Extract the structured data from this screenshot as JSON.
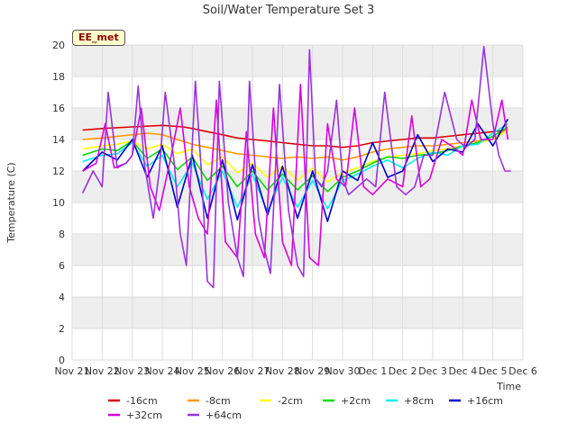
{
  "chart_data": {
    "type": "line",
    "title": "Soil/Water Temperature Set 3",
    "xlabel": "Time",
    "ylabel": "Temperature (C)",
    "ylim": [
      0,
      20
    ],
    "yticks": [
      0,
      2,
      4,
      6,
      8,
      10,
      12,
      14,
      16,
      18,
      20
    ],
    "xlim": [
      0,
      15
    ],
    "xtick_labels": [
      "Nov 21",
      "Nov 22",
      "Nov 23",
      "Nov 24",
      "Nov 25",
      "Nov 26",
      "Nov 27",
      "Nov 28",
      "Nov 29",
      "Nov 30",
      "Dec 1",
      "Dec 2",
      "Dec 3",
      "Dec 4",
      "Dec 5",
      "Dec 6"
    ],
    "grid": true,
    "legend_position": "bottom",
    "badge": "EE_met",
    "series": [
      {
        "name": "-16cm",
        "color": "#dd0000",
        "x": [
          0.35,
          1,
          2,
          3,
          3.7,
          4,
          4.5,
          5,
          5.5,
          6,
          6.5,
          7,
          7.5,
          8,
          8.5,
          9,
          9.5,
          10,
          10.5,
          11,
          11.5,
          12,
          12.5,
          13,
          13.5,
          14,
          14.5
        ],
        "y": [
          14.6,
          14.7,
          14.8,
          14.9,
          14.8,
          14.7,
          14.5,
          14.3,
          14.1,
          14.0,
          13.9,
          13.8,
          13.7,
          13.6,
          13.6,
          13.5,
          13.6,
          13.8,
          13.9,
          14.0,
          14.1,
          14.1,
          14.2,
          14.3,
          14.4,
          14.5,
          14.6
        ]
      },
      {
        "name": "-8cm",
        "color": "#ff9900",
        "x": [
          0.35,
          1,
          1.5,
          2,
          2.5,
          3,
          3.5,
          4,
          4.5,
          5,
          5.5,
          6,
          6.5,
          7,
          7.5,
          8,
          8.5,
          9,
          9.5,
          10,
          10.5,
          11,
          11.5,
          12,
          12.5,
          13,
          13.5,
          14,
          14.5
        ],
        "y": [
          14.0,
          14.1,
          14.2,
          14.3,
          14.4,
          14.3,
          14.0,
          13.7,
          13.5,
          13.3,
          13.1,
          13.0,
          12.9,
          12.8,
          12.9,
          12.8,
          12.9,
          12.7,
          12.9,
          13.2,
          13.4,
          13.5,
          13.6,
          13.6,
          13.7,
          13.8,
          13.9,
          14.0,
          14.7
        ]
      },
      {
        "name": "-2cm",
        "color": "#ffff00",
        "x": [
          0.35,
          1,
          1.5,
          2,
          2.5,
          3,
          3.5,
          4,
          4.5,
          5,
          5.5,
          6,
          6.5,
          7,
          7.5,
          8,
          8.5,
          9,
          9.5,
          10,
          10.5,
          11,
          11.5,
          12,
          12.5,
          13,
          13.5,
          14,
          14.5
        ],
        "y": [
          13.4,
          13.6,
          13.7,
          13.9,
          13.4,
          13.7,
          13.1,
          13.4,
          12.4,
          12.9,
          11.9,
          12.5,
          11.6,
          12.3,
          11.4,
          12.2,
          11.3,
          11.9,
          12.2,
          12.6,
          12.9,
          13.0,
          13.1,
          13.3,
          13.4,
          13.6,
          13.8,
          14.0,
          14.6
        ]
      },
      {
        "name": "+2cm",
        "color": "#00dd00",
        "x": [
          0.35,
          1,
          1.5,
          2,
          2.5,
          3,
          3.5,
          4,
          4.5,
          5,
          5.5,
          6,
          6.5,
          7,
          7.5,
          8,
          8.5,
          9,
          9.5,
          10,
          10.5,
          11,
          11.5,
          12,
          12.5,
          13,
          13.5,
          14,
          14.5
        ],
        "y": [
          13.0,
          13.4,
          13.3,
          13.9,
          12.8,
          13.4,
          12.1,
          12.9,
          11.4,
          12.3,
          11.0,
          12.0,
          10.8,
          11.8,
          10.8,
          11.7,
          10.7,
          11.6,
          12.0,
          12.5,
          12.9,
          12.8,
          13.0,
          13.1,
          13.3,
          13.6,
          13.8,
          14.2,
          14.8
        ]
      },
      {
        "name": "+8cm",
        "color": "#00eeee",
        "x": [
          0.35,
          1,
          1.5,
          2,
          2.5,
          3,
          3.5,
          4,
          4.5,
          5,
          5.5,
          6,
          6.5,
          7,
          7.5,
          8,
          8.5,
          9,
          9.5,
          10,
          10.5,
          11,
          11.5,
          12,
          12.5,
          13,
          13.5,
          14,
          14.5
        ],
        "y": [
          12.6,
          13.0,
          13.1,
          13.8,
          12.3,
          13.0,
          11.0,
          12.5,
          10.2,
          12.0,
          9.7,
          11.8,
          9.4,
          11.6,
          9.7,
          11.4,
          9.6,
          11.4,
          11.8,
          12.3,
          12.7,
          12.2,
          12.8,
          13.2,
          13.0,
          13.6,
          13.7,
          14.4,
          15.0
        ]
      },
      {
        "name": "+16cm",
        "color": "#0000cc",
        "x": [
          0.35,
          1,
          1.5,
          2,
          2.5,
          3,
          3.5,
          4,
          4.5,
          5,
          5.5,
          6,
          6.5,
          7,
          7.5,
          8,
          8.5,
          9,
          9.5,
          10,
          10.5,
          11,
          11.5,
          12,
          12.5,
          13,
          13.5,
          14,
          14.5
        ],
        "y": [
          12.0,
          13.2,
          12.7,
          14.0,
          11.6,
          13.6,
          9.7,
          13.0,
          9.0,
          12.7,
          8.9,
          12.4,
          9.2,
          12.3,
          9.0,
          12.0,
          8.8,
          12.0,
          11.4,
          13.8,
          11.6,
          12.0,
          14.3,
          12.6,
          13.4,
          13.2,
          15.0,
          13.6,
          15.3
        ]
      },
      {
        "name": "+32cm",
        "color": "#dd00dd",
        "x": [
          0.35,
          0.8,
          1.1,
          1.4,
          1.8,
          2.0,
          2.3,
          2.6,
          2.9,
          3.3,
          3.6,
          3.9,
          4.2,
          4.5,
          4.8,
          5.1,
          5.5,
          5.8,
          6.1,
          6.4,
          6.7,
          7.0,
          7.3,
          7.6,
          7.9,
          8.2,
          8.5,
          8.8,
          9.1,
          9.4,
          9.7,
          10.0,
          10.5,
          11.0,
          11.3,
          11.6,
          11.9,
          12.3,
          12.7,
          13.0,
          13.3,
          13.6,
          14.0,
          14.3,
          14.5
        ],
        "y": [
          12.0,
          12.5,
          15.0,
          12.2,
          12.5,
          13.0,
          16.0,
          11.0,
          9.5,
          13.0,
          16.0,
          11.0,
          9.0,
          8.0,
          16.5,
          7.5,
          6.5,
          14.5,
          8.0,
          6.5,
          16.0,
          7.5,
          6.0,
          17.5,
          6.5,
          6.0,
          15.0,
          11.5,
          11.0,
          16.0,
          11.0,
          10.5,
          11.5,
          11.0,
          15.5,
          11.0,
          11.5,
          14.0,
          13.5,
          13.0,
          16.5,
          14.0,
          14.0,
          16.5,
          14.0
        ]
      },
      {
        "name": "+64cm",
        "color": "#9933dd",
        "x": [
          0.35,
          0.7,
          1.0,
          1.2,
          1.5,
          1.8,
          2.0,
          2.2,
          2.4,
          2.7,
          2.9,
          3.1,
          3.4,
          3.6,
          3.8,
          4.1,
          4.3,
          4.5,
          4.7,
          4.9,
          5.2,
          5.5,
          5.7,
          5.9,
          6.2,
          6.4,
          6.6,
          6.9,
          7.2,
          7.5,
          7.7,
          7.9,
          8.1,
          8.3,
          8.5,
          8.8,
          9.0,
          9.2,
          9.5,
          9.8,
          10.1,
          10.4,
          10.8,
          11.1,
          11.4,
          11.7,
          12.0,
          12.4,
          12.8,
          13.1,
          13.4,
          13.7,
          14.0,
          14.2,
          14.4,
          14.6
        ],
        "y": [
          10.6,
          12.0,
          11.0,
          17.0,
          12.2,
          12.5,
          13.0,
          17.4,
          12.5,
          9.0,
          12.0,
          17.0,
          12.5,
          8.0,
          6.0,
          17.7,
          12.0,
          5.0,
          4.6,
          17.7,
          10.0,
          6.5,
          5.3,
          17.7,
          9.0,
          7.0,
          5.5,
          17.5,
          9.5,
          6.0,
          5.3,
          19.7,
          11.5,
          11.0,
          12.0,
          16.5,
          11.5,
          10.5,
          11.0,
          11.5,
          11.0,
          17.0,
          11.0,
          10.5,
          11.0,
          13.0,
          13.0,
          17.0,
          14.0,
          13.5,
          14.0,
          19.9,
          15.0,
          13.0,
          12.0,
          12.0
        ]
      }
    ]
  }
}
